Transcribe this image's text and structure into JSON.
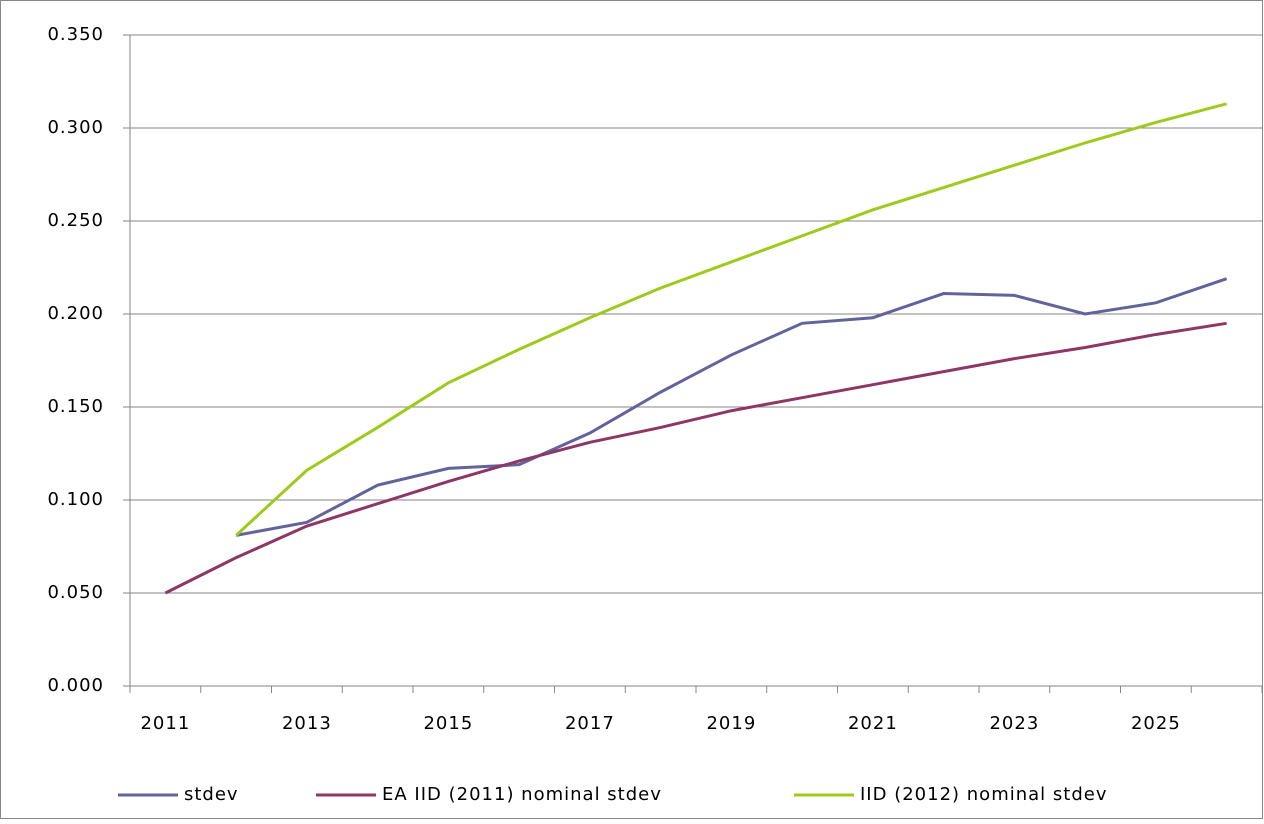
{
  "chart_data": {
    "type": "line",
    "categories": [
      "2011",
      null,
      "2013",
      null,
      "2015",
      null,
      "2017",
      null,
      "2019",
      null,
      "2021",
      null,
      "2023",
      null,
      "2025",
      null
    ],
    "series": [
      {
        "name": "stdev",
        "color": "#63639c",
        "values": [
          null,
          0.081,
          0.088,
          0.108,
          0.117,
          0.119,
          0.136,
          0.158,
          0.178,
          0.195,
          0.198,
          0.211,
          0.21,
          0.2,
          0.206,
          0.219
        ]
      },
      {
        "name": "EA IID (2011) nominal stdev",
        "color": "#8e3766",
        "values": [
          0.05,
          0.069,
          0.086,
          0.098,
          0.11,
          0.121,
          0.131,
          0.139,
          0.148,
          0.155,
          0.162,
          0.169,
          0.176,
          0.182,
          0.189,
          0.195
        ]
      },
      {
        "name": "IID (2012) nominal stdev",
        "color": "#9ccb1c",
        "values": [
          null,
          0.081,
          0.116,
          0.139,
          0.163,
          0.181,
          0.198,
          0.214,
          0.228,
          0.242,
          0.256,
          0.268,
          0.28,
          0.292,
          0.303,
          0.313
        ]
      }
    ],
    "ylim": [
      0,
      0.35
    ],
    "yticks": [
      {
        "value": 0,
        "label": "0.000"
      },
      {
        "value": 0.05,
        "label": "0.050"
      },
      {
        "value": 0.1,
        "label": "0.100"
      },
      {
        "value": 0.15,
        "label": "0.150"
      },
      {
        "value": 0.2,
        "label": "0.200"
      },
      {
        "value": 0.25,
        "label": "0.250"
      },
      {
        "value": 0.3,
        "label": "0.300"
      },
      {
        "value": 0.35,
        "label": "0.350"
      }
    ],
    "grid": true,
    "legend": "bottom"
  }
}
